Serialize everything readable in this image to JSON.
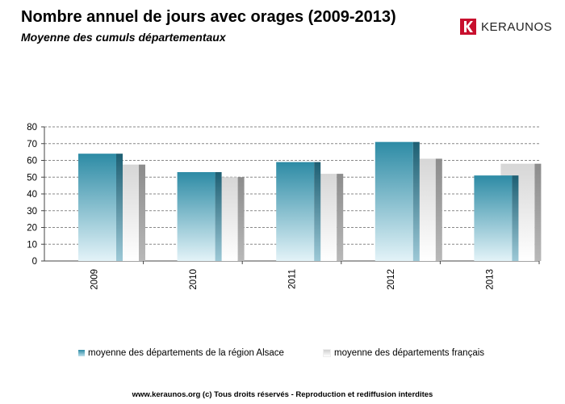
{
  "header": {
    "title": "Nombre annuel de jours avec orages (2009-2013)",
    "subtitle": "Moyenne des cumuls départementaux",
    "logo_text": "KERAUNOS"
  },
  "footer": {
    "text": "www.keraunos.org  (c) Tous droits réservés - Reproduction et rediffusion interdites"
  },
  "colors": {
    "series1_top": "#2d8ba5",
    "series1_bottom": "#e3f3f8",
    "series2_top": "#dcdcdc",
    "series2_bottom": "#ffffff",
    "grid": "#888888",
    "logo_red": "#c8102e"
  },
  "chart_data": {
    "type": "bar",
    "title": "Nombre annuel de jours avec orages (2009-2013)",
    "subtitle": "Moyenne des cumuls départementaux",
    "categories": [
      "2009",
      "2010",
      "2011",
      "2012",
      "2013"
    ],
    "series": [
      {
        "name": "moyenne des départements de la région Alsace",
        "values": [
          64,
          53,
          59,
          71,
          51
        ]
      },
      {
        "name": "moyenne des départements français",
        "values": [
          57.5,
          50,
          52,
          61,
          58
        ]
      }
    ],
    "ylim": [
      0,
      80
    ],
    "yticks": [
      0,
      10,
      20,
      30,
      40,
      50,
      60,
      70,
      80
    ],
    "grid": true,
    "legend_position": "bottom"
  }
}
